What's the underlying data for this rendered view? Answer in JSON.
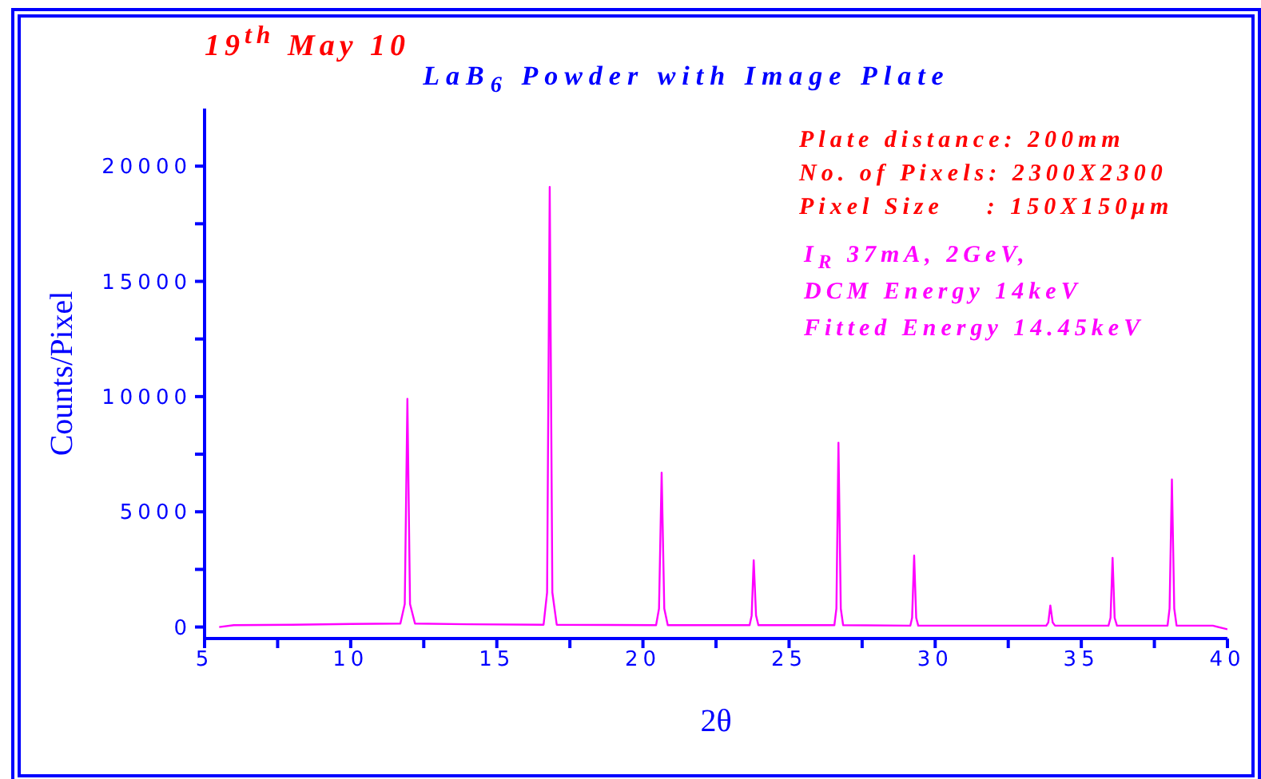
{
  "chart_data": {
    "type": "line",
    "title": "LaB$_{6}$ Powder with Image Plate",
    "xlabel": "2θ",
    "ylabel": "Counts/Pixel",
    "annotations": [
      "19$^{th}$ May 10",
      "Plate distance: 200mm",
      "No. of Pixels: 2300X2300",
      "Pixel Size    : 150X150μm",
      "I$_{R}$ 37mA, 2GeV,",
      "DCM Energy 14keV",
      "Fitted Energy 14.45keV"
    ],
    "x": [
      5.5,
      6,
      8,
      10,
      11.7,
      11.85,
      11.94,
      12.03,
      12.2,
      14,
      16.6,
      16.72,
      16.81,
      16.9,
      17.05,
      20.45,
      20.55,
      20.64,
      20.73,
      20.85,
      23.65,
      23.72,
      23.79,
      23.87,
      23.95,
      26.55,
      26.62,
      26.69,
      26.77,
      26.85,
      29.15,
      29.21,
      29.28,
      29.35,
      29.42,
      33.8,
      33.87,
      33.94,
      34.02,
      34.1,
      35.93,
      36.0,
      36.07,
      36.14,
      36.22,
      37.95,
      38.02,
      38.1,
      38.18,
      38.26,
      39.5,
      40
    ],
    "series": [
      {
        "color": "#ff00ff",
        "values": [
          0,
          80,
          100,
          130,
          150,
          1000,
          9900,
          1000,
          150,
          120,
          100,
          1500,
          19100,
          1500,
          100,
          80,
          800,
          6700,
          800,
          80,
          80,
          500,
          2900,
          500,
          80,
          80,
          800,
          8000,
          800,
          80,
          60,
          400,
          3100,
          400,
          60,
          60,
          200,
          930,
          200,
          60,
          60,
          400,
          3000,
          400,
          60,
          60,
          800,
          6400,
          800,
          60,
          60,
          -100
        ]
      }
    ],
    "xlim": [
      5,
      40
    ],
    "ylim": [
      -500,
      22500
    ],
    "xticks": [
      5,
      {
        "value": 7.5,
        "label": null
      },
      10,
      {
        "value": 12.5,
        "label": null
      },
      15,
      {
        "value": 17.5,
        "label": null
      },
      20,
      {
        "value": 22.5,
        "label": null
      },
      25,
      {
        "value": 27.5,
        "label": null
      },
      30,
      {
        "value": 32.5,
        "label": null
      },
      35,
      {
        "value": 37.5,
        "label": null
      },
      40
    ],
    "yticks": [
      0,
      {
        "value": 2500,
        "label": null
      },
      5000,
      {
        "value": 7500,
        "label": null
      },
      10000,
      {
        "value": 12500,
        "label": null
      },
      15000,
      {
        "value": 17500,
        "label": null
      },
      20000
    ],
    "grid": false,
    "legend": false,
    "marker": "none",
    "line_style": "solid"
  }
}
